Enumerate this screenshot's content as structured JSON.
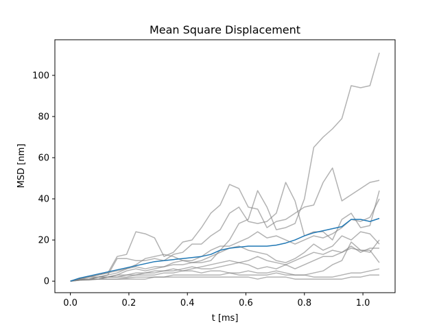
{
  "chart_data": {
    "type": "line",
    "title": "Mean Square Displacement",
    "xlabel": "t [ms]",
    "ylabel": "MSD [nm]",
    "xlim": [
      -0.053,
      1.11
    ],
    "ylim": [
      -5.6,
      117.3
    ],
    "xticks": [
      0.0,
      0.2,
      0.4,
      0.6,
      0.8,
      1.0
    ],
    "xtick_labels": [
      "0.0",
      "0.2",
      "0.4",
      "0.6",
      "0.8",
      "1.0"
    ],
    "yticks": [
      0,
      20,
      40,
      60,
      80,
      100
    ],
    "ytick_labels": [
      "0",
      "20",
      "40",
      "60",
      "80",
      "100"
    ],
    "grid": false,
    "x": [
      0.0,
      0.032,
      0.064,
      0.096,
      0.128,
      0.16,
      0.192,
      0.224,
      0.256,
      0.288,
      0.32,
      0.352,
      0.384,
      0.416,
      0.448,
      0.48,
      0.512,
      0.544,
      0.576,
      0.608,
      0.64,
      0.672,
      0.704,
      0.736,
      0.768,
      0.8,
      0.832,
      0.864,
      0.896,
      0.928,
      0.96,
      0.992,
      1.024,
      1.056
    ],
    "series": [
      {
        "color": "#7f7f7f",
        "values": [
          0,
          1.5,
          2,
          3,
          4,
          5,
          6,
          7,
          6,
          7,
          7,
          8,
          8,
          9,
          9,
          10,
          15,
          20,
          28,
          30,
          44,
          36,
          25,
          26,
          28,
          40,
          65,
          70,
          74,
          79,
          95,
          94,
          95,
          111
        ]
      },
      {
        "color": "#7f7f7f",
        "values": [
          0,
          1.5,
          2,
          3,
          4,
          12,
          13,
          24,
          23,
          21,
          12,
          14,
          19,
          20,
          26,
          33,
          37,
          47,
          45,
          36,
          35,
          26,
          29,
          30,
          33,
          36,
          37,
          48,
          55,
          39,
          42,
          45,
          48,
          49
        ]
      },
      {
        "color": "#7f7f7f",
        "values": [
          0,
          1,
          2,
          2,
          3,
          11,
          11,
          10,
          10,
          11,
          10,
          13,
          14,
          18,
          18,
          22,
          25,
          33,
          36,
          29,
          28,
          29,
          33,
          48,
          39,
          22,
          24,
          24,
          20,
          30,
          33,
          26,
          27,
          44
        ]
      },
      {
        "color": "#7f7f7f",
        "values": [
          0,
          1,
          1,
          2,
          3,
          4,
          6,
          8,
          11,
          12,
          13,
          12,
          10,
          10,
          12,
          15,
          17,
          17,
          19,
          21,
          24,
          21,
          22,
          20,
          18,
          20,
          22,
          21,
          23,
          26,
          30,
          29,
          31,
          40
        ]
      },
      {
        "color": "#7f7f7f",
        "values": [
          0,
          1,
          1,
          1,
          2,
          3,
          5,
          6,
          5,
          6,
          7,
          9,
          10,
          9,
          10,
          12,
          14,
          16,
          17,
          15,
          14,
          13,
          10,
          9,
          11,
          14,
          18,
          15,
          17,
          22,
          20,
          24,
          23,
          18
        ]
      },
      {
        "color": "#7f7f7f",
        "values": [
          0,
          0.5,
          1,
          2,
          2,
          3,
          3,
          4,
          4,
          5,
          5,
          6,
          5,
          6,
          7,
          8,
          9,
          10,
          9,
          10,
          12,
          10,
          9,
          8,
          10,
          12,
          14,
          13,
          15,
          14,
          16,
          15,
          14,
          20
        ]
      },
      {
        "color": "#7f7f7f",
        "values": [
          0,
          1,
          1,
          2,
          2,
          2,
          3,
          3,
          4,
          4,
          5,
          5,
          6,
          7,
          6,
          6,
          7,
          8,
          9,
          8,
          6,
          7,
          6,
          8,
          6,
          8,
          10,
          12,
          12,
          14,
          17,
          14,
          16,
          16
        ]
      },
      {
        "color": "#7f7f7f",
        "values": [
          0,
          1,
          1,
          1,
          2,
          2,
          2,
          3,
          3,
          3,
          4,
          4,
          5,
          5,
          4,
          5,
          5,
          4,
          4,
          5,
          4,
          4,
          5,
          4,
          3,
          3,
          4,
          5,
          8,
          10,
          19,
          15,
          15,
          9
        ]
      },
      {
        "color": "#7f7f7f",
        "values": [
          0,
          0.5,
          1,
          1,
          1,
          1,
          1.5,
          2,
          2,
          2,
          2,
          3,
          3,
          3,
          3,
          3,
          3,
          4,
          3,
          3,
          3,
          3,
          4,
          3,
          3,
          3,
          2,
          2,
          2,
          3,
          4,
          4,
          5,
          6
        ]
      },
      {
        "color": "#7f7f7f",
        "values": [
          0,
          0.5,
          0.5,
          1,
          1,
          1,
          1,
          1,
          1,
          2,
          2,
          2,
          2,
          2,
          2,
          2,
          2,
          2,
          2,
          2,
          1,
          2,
          2,
          2,
          1,
          1,
          1,
          1,
          1,
          1,
          2,
          2,
          3,
          3
        ]
      },
      {
        "color": "#1f77b4",
        "values": [
          0,
          1.5,
          2.5,
          3.5,
          4.5,
          5.5,
          6.5,
          7.5,
          8.5,
          9.5,
          10,
          10.5,
          11,
          11.5,
          12,
          13,
          15,
          16,
          16.5,
          17,
          17,
          17,
          17.5,
          18.5,
          20,
          22,
          23.5,
          24.5,
          25.5,
          26.5,
          30,
          30,
          29,
          30.5
        ]
      }
    ]
  }
}
